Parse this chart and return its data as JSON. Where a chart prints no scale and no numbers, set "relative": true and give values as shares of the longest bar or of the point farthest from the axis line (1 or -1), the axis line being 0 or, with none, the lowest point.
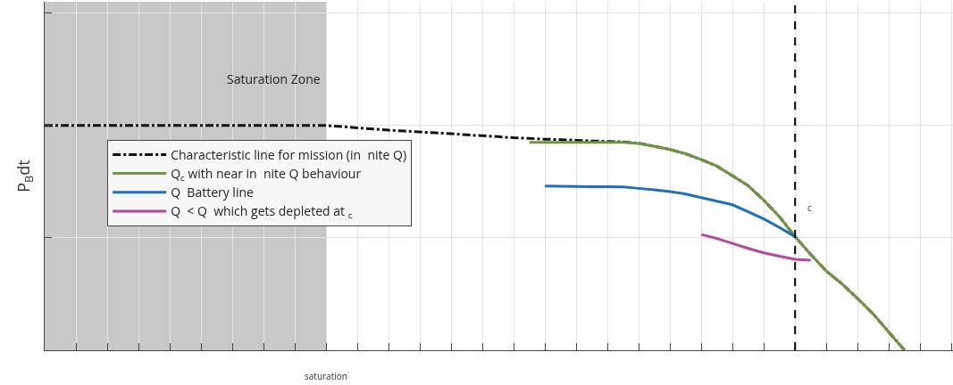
{
  "chart_data": {
    "type": "line",
    "relative": true,
    "ylabel": "P$_{B}$dt",
    "categories": [
      null,
      null,
      null,
      null,
      null,
      null,
      null,
      null,
      null,
      null,
      null,
      null,
      null,
      null,
      null,
      null,
      null,
      null,
      null,
      null,
      null,
      null,
      null,
      null,
      null,
      null,
      null,
      null,
      null,
      null,
      null,
      null,
      null,
      null,
      null,
      null,
      null,
      null,
      null,
      null,
      null,
      null,
      null,
      null,
      null,
      null,
      null,
      null,
      null,
      null,
      null,
      null,
      null,
      null,
      null,
      null,
      null,
      null,
      null
    ],
    "grid": true,
    "legend": "left",
    "marker": "none",
    "annotations": [
      "saturation",
      "Saturation Zone",
      "c"
    ],
    "series": [
      {
        "name": "Characteristic line for mission (in  nite Q)",
        "color": "#111111",
        "line_style": "dashed",
        "values": [
          1.0,
          1.0,
          1.0,
          1.0,
          1.0,
          1.0,
          1.0,
          1.0,
          1.0,
          1.0,
          1.0,
          1.0,
          1.0,
          1.0,
          1.0,
          1.0,
          1.0,
          1.0,
          1.0,
          0.995,
          0.989,
          0.984,
          0.979,
          0.975,
          0.971,
          0.967,
          0.963,
          0.958,
          0.954,
          0.95,
          0.945,
          0.942,
          0.939,
          0.937,
          0.934,
          0.931,
          0.929,
          0.927,
          0.921,
          0.907,
          0.893,
          0.874,
          0.848,
          0.819,
          0.776,
          0.732,
          0.667,
          0.594,
          0.505,
          0.426,
          0.352,
          0.295,
          0.23,
          0.161,
          0.08,
          0,
          null,
          null,
          null
        ]
      },
      {
        "name": "Q$_{c}$ with near in  nite Q behaviour",
        "color": "#6f9541",
        "line_style": "solid",
        "values": [
          null,
          null,
          null,
          null,
          null,
          null,
          null,
          null,
          null,
          null,
          null,
          null,
          null,
          null,
          null,
          null,
          null,
          null,
          null,
          null,
          null,
          null,
          null,
          null,
          null,
          null,
          null,
          null,
          null,
          null,
          null,
          0.925,
          0.925,
          0.925,
          0.925,
          0.925,
          0.925,
          0.925,
          0.92,
          0.907,
          0.893,
          0.874,
          0.848,
          0.819,
          0.776,
          0.732,
          0.667,
          0.594,
          0.505,
          0.426,
          0.352,
          0.295,
          0.23,
          0.161,
          0.08,
          0,
          null,
          null,
          null
        ]
      },
      {
        "name": "Q  Battery line",
        "color": "#1f6fba",
        "line_style": "solid",
        "values": [
          null,
          null,
          null,
          null,
          null,
          null,
          null,
          null,
          null,
          null,
          null,
          null,
          null,
          null,
          null,
          null,
          null,
          null,
          null,
          null,
          null,
          null,
          null,
          null,
          null,
          null,
          null,
          null,
          null,
          null,
          null,
          null,
          0.73,
          0.729,
          0.728,
          0.727,
          0.727,
          0.726,
          0.72,
          0.714,
          0.706,
          0.695,
          0.679,
          0.663,
          0.647,
          0.616,
          0.584,
          0.546,
          0.505,
          null,
          null,
          null,
          null,
          null,
          null,
          null,
          null,
          null,
          null
        ]
      },
      {
        "name": "Q  < Q  which gets depleted at $_{c}$",
        "color": "#b8479f",
        "line_style": "solid",
        "values": [
          null,
          null,
          null,
          null,
          null,
          null,
          null,
          null,
          null,
          null,
          null,
          null,
          null,
          null,
          null,
          null,
          null,
          null,
          null,
          null,
          null,
          null,
          null,
          null,
          null,
          null,
          null,
          null,
          null,
          null,
          null,
          null,
          null,
          null,
          null,
          null,
          null,
          null,
          null,
          null,
          null,
          null,
          0.515,
          0.497,
          0.475,
          0.453,
          0.433,
          0.418,
          0.404,
          0.4,
          null,
          null,
          null,
          null,
          null,
          null,
          null,
          null,
          null
        ]
      }
    ]
  }
}
